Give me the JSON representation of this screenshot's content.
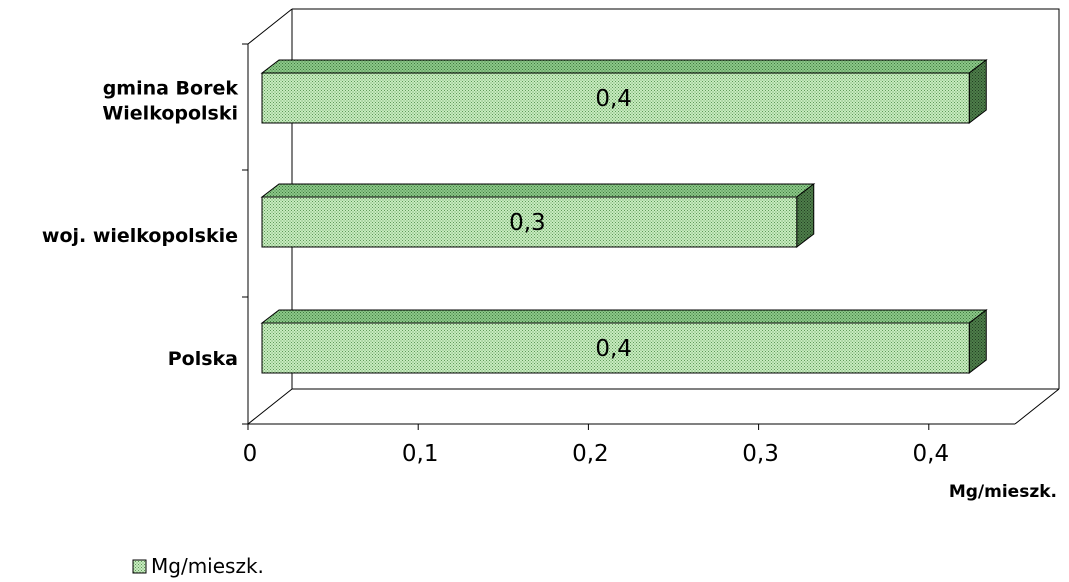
{
  "chart_data": {
    "type": "bar",
    "orientation": "horizontal",
    "three_d": true,
    "categories": [
      "gmina Borek Wielkopolski",
      "woj. wielkopolskie",
      "Polska"
    ],
    "category_lines": [
      [
        "gmina Borek",
        "Wielkopolski"
      ],
      [
        "woj. wielkopolskie"
      ],
      [
        "Polska"
      ]
    ],
    "series": [
      {
        "name": "Mg/mieszk.",
        "values": [
          0.41,
          0.31,
          0.41
        ]
      }
    ],
    "data_labels": [
      "0,4",
      "0,3",
      "0,4"
    ],
    "xlim": [
      0,
      0.45
    ],
    "x_ticks": [
      0,
      0.1,
      0.2,
      0.3,
      0.4
    ],
    "x_tick_labels": [
      "0",
      "0,1",
      "0,2",
      "0,3",
      "0,4"
    ],
    "xlabel": "Mg/mieszk.",
    "grid": false,
    "legend": {
      "position": "bottom-left",
      "entries": [
        "Mg/mieszk."
      ]
    },
    "colors": {
      "bar_face": "#b8e0b0",
      "bar_top": "#74b870",
      "bar_side": "#3d6b3d",
      "outline": "#000000"
    }
  }
}
